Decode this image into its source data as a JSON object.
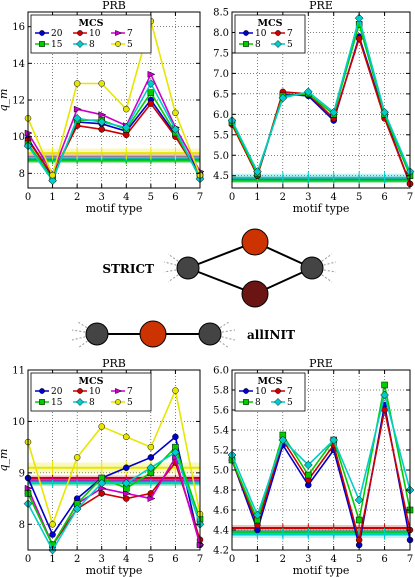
{
  "chart_data": [
    {
      "type": "line",
      "title": "PRB",
      "xlabel": "motif type",
      "ylabel": "q_m",
      "xlim": [
        0,
        7
      ],
      "ylim": [
        7.2,
        16.8
      ],
      "xticks": [
        0,
        1,
        2,
        3,
        4,
        5,
        6,
        7
      ],
      "yticks": [
        8,
        10,
        12,
        14,
        16
      ],
      "grid": true,
      "legend": {
        "title": "MCS",
        "placement": "top-left",
        "columns": 3
      },
      "x": [
        0,
        1,
        2,
        3,
        4,
        5,
        6,
        7
      ],
      "series": [
        {
          "name": "20",
          "color": "#0000cc",
          "marker": "circle",
          "values": [
            9.9,
            7.8,
            10.8,
            10.7,
            10.3,
            12.0,
            10.1,
            8.0
          ],
          "null_band": {
            "value": 8.75,
            "spread": 0.15
          }
        },
        {
          "name": "10",
          "color": "#cc0000",
          "marker": "circle",
          "values": [
            9.8,
            7.9,
            10.6,
            10.4,
            10.1,
            11.8,
            10.0,
            7.9
          ],
          "null_band": {
            "value": 8.8,
            "spread": 0.15
          }
        },
        {
          "name": "7",
          "color": "#cc00cc",
          "marker": "triangle-right",
          "values": [
            10.2,
            8.0,
            11.5,
            11.2,
            10.6,
            13.4,
            10.5,
            8.1
          ],
          "null_band": {
            "value": 8.9,
            "spread": 0.15
          }
        },
        {
          "name": "15",
          "color": "#00cc00",
          "marker": "square",
          "values": [
            9.6,
            7.7,
            10.9,
            10.9,
            10.4,
            12.4,
            10.2,
            7.8
          ],
          "null_band": {
            "value": 8.7,
            "spread": 0.15
          }
        },
        {
          "name": "8",
          "color": "#00cccc",
          "marker": "diamond",
          "values": [
            9.5,
            7.6,
            11.0,
            10.8,
            10.5,
            12.9,
            10.4,
            7.7
          ],
          "null_band": {
            "value": 8.85,
            "spread": 0.15
          }
        },
        {
          "name": "5",
          "color": "#e6e600",
          "marker": "circle",
          "values": [
            11.0,
            7.9,
            12.9,
            12.9,
            11.5,
            16.3,
            11.3,
            7.9
          ],
          "null_band": {
            "value": 9.1,
            "spread": 0.25
          }
        }
      ]
    },
    {
      "type": "line",
      "title": "PRE",
      "xlabel": "motif type",
      "ylabel": "",
      "xlim": [
        0,
        7
      ],
      "ylim": [
        4.2,
        8.5
      ],
      "xticks": [
        0,
        1,
        2,
        3,
        4,
        5,
        6,
        7
      ],
      "yticks": [
        4.5,
        5.0,
        5.5,
        6.0,
        6.5,
        7.0,
        7.5,
        8.0,
        8.5
      ],
      "grid": true,
      "legend": {
        "title": "MCS",
        "placement": "top-left",
        "columns": 2
      },
      "x": [
        0,
        1,
        2,
        3,
        4,
        5,
        6,
        7
      ],
      "series": [
        {
          "name": "10",
          "color": "#0000cc",
          "marker": "circle",
          "values": [
            5.8,
            4.5,
            6.5,
            6.45,
            5.85,
            7.9,
            5.95,
            4.3
          ],
          "null_band": {
            "value": 4.4,
            "spread": 0.06
          }
        },
        {
          "name": "7",
          "color": "#cc0000",
          "marker": "circle",
          "values": [
            5.75,
            4.5,
            6.55,
            6.5,
            5.9,
            7.85,
            5.9,
            4.3
          ],
          "null_band": {
            "value": 4.42,
            "spread": 0.06
          }
        },
        {
          "name": "8",
          "color": "#00cc00",
          "marker": "square",
          "values": [
            5.8,
            4.55,
            6.45,
            6.5,
            6.0,
            8.2,
            6.0,
            4.5
          ],
          "null_band": {
            "value": 4.38,
            "spread": 0.06
          }
        },
        {
          "name": "5",
          "color": "#00cccc",
          "marker": "diamond",
          "values": [
            5.85,
            4.6,
            6.4,
            6.55,
            6.05,
            8.35,
            6.05,
            4.6
          ],
          "null_band": {
            "value": 4.45,
            "spread": 0.1
          }
        }
      ]
    },
    {
      "type": "line",
      "title": "PRB",
      "xlabel": "motif type",
      "ylabel": "q_m",
      "xlim": [
        0,
        7
      ],
      "ylim": [
        7.5,
        11.0
      ],
      "xticks": [
        0,
        1,
        2,
        3,
        4,
        5,
        6,
        7
      ],
      "yticks": [
        8,
        9,
        10,
        11
      ],
      "grid": true,
      "legend": {
        "title": "MCS",
        "placement": "top-left",
        "columns": 3
      },
      "x": [
        0,
        1,
        2,
        3,
        4,
        5,
        6,
        7
      ],
      "series": [
        {
          "name": "20",
          "color": "#0000cc",
          "marker": "circle",
          "values": [
            8.9,
            7.8,
            8.5,
            8.9,
            9.1,
            9.3,
            9.7,
            7.6
          ],
          "null_band": {
            "value": 8.85,
            "spread": 0.05
          }
        },
        {
          "name": "10",
          "color": "#cc0000",
          "marker": "circle",
          "values": [
            8.6,
            7.6,
            8.3,
            8.6,
            8.5,
            8.6,
            9.2,
            7.7
          ],
          "null_band": {
            "value": 8.9,
            "spread": 0.05
          }
        },
        {
          "name": "7",
          "color": "#cc00cc",
          "marker": "triangle-right",
          "values": [
            8.7,
            7.6,
            8.4,
            8.7,
            8.6,
            8.5,
            9.3,
            7.6
          ],
          "null_band": {
            "value": 8.85,
            "spread": 0.05
          }
        },
        {
          "name": "15",
          "color": "#00cc00",
          "marker": "square",
          "values": [
            8.6,
            7.6,
            8.4,
            8.9,
            8.7,
            9.0,
            9.5,
            8.1
          ],
          "null_band": {
            "value": 8.8,
            "spread": 0.05
          }
        },
        {
          "name": "8",
          "color": "#00cccc",
          "marker": "diamond",
          "values": [
            8.4,
            7.5,
            8.3,
            8.8,
            8.8,
            9.1,
            9.4,
            8.0
          ],
          "null_band": {
            "value": 8.8,
            "spread": 0.05
          }
        },
        {
          "name": "5",
          "color": "#e6e600",
          "marker": "circle",
          "values": [
            9.6,
            8.0,
            9.3,
            9.9,
            9.7,
            9.5,
            10.6,
            8.2
          ],
          "null_band": {
            "value": 9.1,
            "spread": 0.1
          }
        }
      ]
    },
    {
      "type": "line",
      "title": "PRE",
      "xlabel": "motif type",
      "ylabel": "",
      "xlim": [
        0,
        7
      ],
      "ylim": [
        4.2,
        6.0
      ],
      "xticks": [
        0,
        1,
        2,
        3,
        4,
        5,
        6,
        7
      ],
      "yticks": [
        4.2,
        4.4,
        4.6,
        4.8,
        5.0,
        5.2,
        5.4,
        5.6,
        5.8,
        6.0
      ],
      "grid": true,
      "legend": {
        "title": "MCS",
        "placement": "top-left",
        "columns": 2
      },
      "x": [
        0,
        1,
        2,
        3,
        4,
        5,
        6,
        7
      ],
      "series": [
        {
          "name": "10",
          "color": "#0000cc",
          "marker": "circle",
          "values": [
            5.1,
            4.4,
            5.25,
            4.85,
            5.2,
            4.25,
            5.65,
            4.3
          ],
          "null_band": {
            "value": 4.37,
            "spread": 0.03
          }
        },
        {
          "name": "7",
          "color": "#cc0000",
          "marker": "circle",
          "values": [
            5.1,
            4.45,
            5.3,
            4.9,
            5.25,
            4.3,
            5.6,
            4.4
          ],
          "null_band": {
            "value": 4.42,
            "spread": 0.03
          }
        },
        {
          "name": "8",
          "color": "#00cc00",
          "marker": "square",
          "values": [
            5.1,
            4.5,
            5.35,
            4.95,
            5.3,
            4.5,
            5.85,
            4.6
          ],
          "null_band": {
            "value": 4.38,
            "spread": 0.03
          }
        },
        {
          "name": "5",
          "color": "#00cccc",
          "marker": "diamond",
          "values": [
            5.15,
            4.55,
            5.3,
            5.05,
            5.3,
            4.7,
            5.75,
            4.8
          ],
          "null_band": {
            "value": 4.36,
            "spread": 0.04
          }
        }
      ]
    }
  ],
  "diagrams": [
    {
      "label": "STRICT",
      "node_colors": [
        "#cc3300",
        "#6b1414",
        "#444444",
        "#444444"
      ]
    },
    {
      "label": "allINIT",
      "node_colors": [
        "#444444",
        "#cc3300",
        "#444444"
      ]
    }
  ]
}
